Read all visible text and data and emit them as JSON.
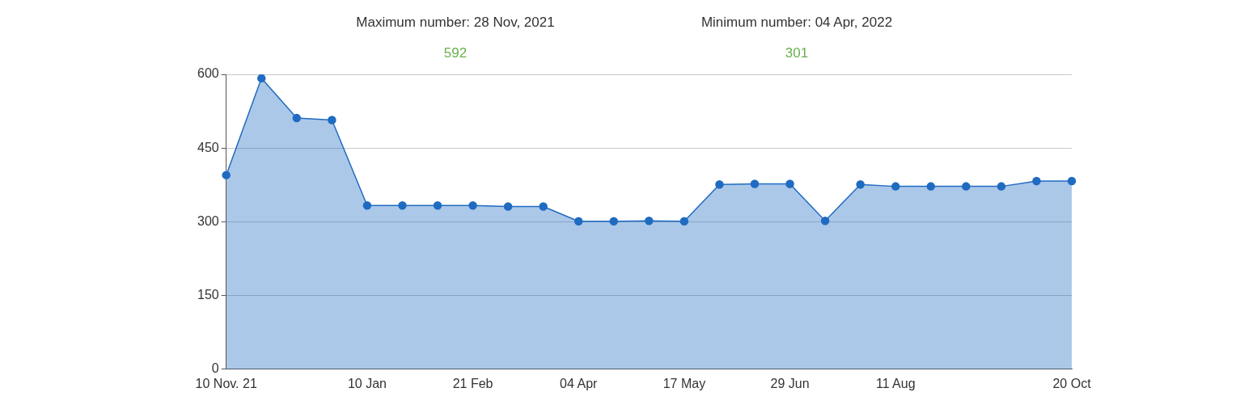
{
  "chart_data": {
    "type": "area",
    "annotations": [
      "Maximum number: 28 Nov, 2021",
      "592",
      "Minimum number: 04 Apr, 2022",
      "301"
    ],
    "categories": [
      "10 Nov. 21",
      null,
      null,
      null,
      "10 Jan",
      null,
      null,
      "21 Feb",
      null,
      null,
      "04 Apr",
      null,
      null,
      "17 May",
      null,
      null,
      "29 Jun",
      null,
      null,
      "11 Aug",
      null,
      null,
      null,
      null,
      "20 Oct"
    ],
    "series": [
      {
        "color": "#1f6bc1",
        "values": [
          395,
          592,
          511,
          507,
          333,
          333,
          333,
          333,
          331,
          331,
          301,
          301,
          302,
          301,
          376,
          377,
          377,
          302,
          376,
          372,
          372,
          372,
          372,
          383,
          383
        ]
      }
    ],
    "ylim": [
      0,
      600
    ],
    "yticks": [
      0,
      150,
      300,
      450,
      600
    ],
    "grid": "y",
    "legend": false,
    "marker": "circle",
    "line_style": "solid"
  }
}
